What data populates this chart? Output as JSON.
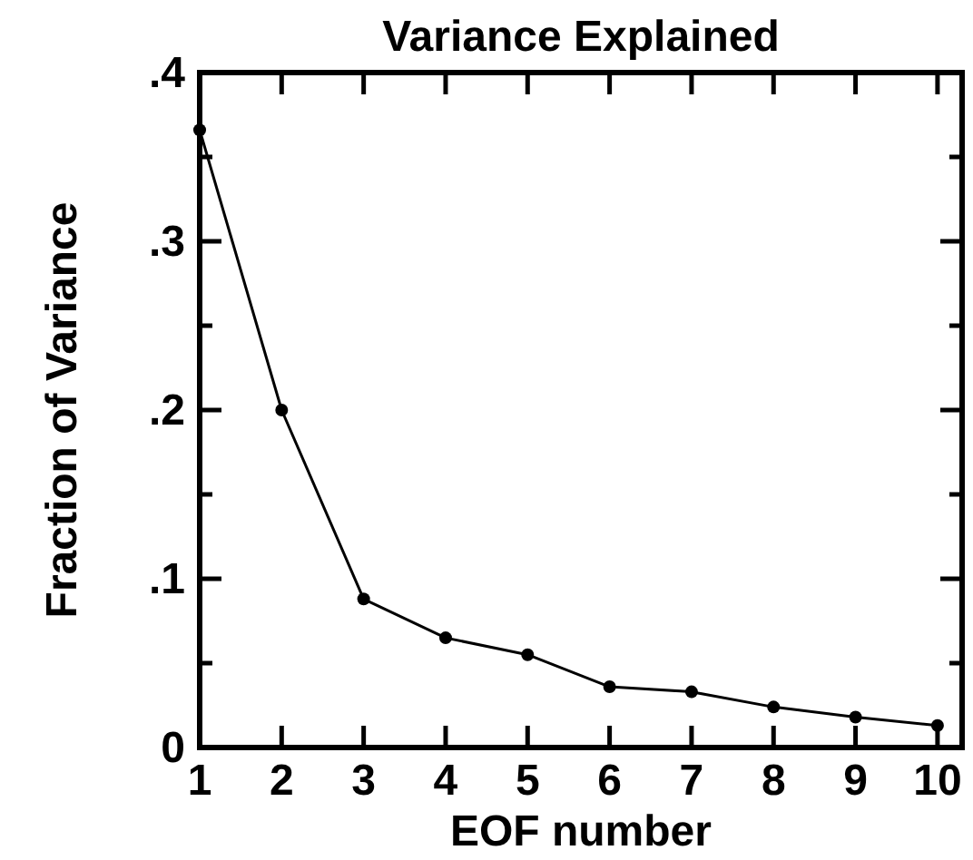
{
  "chart_data": {
    "type": "line",
    "title": "Variance Explained",
    "xlabel": "EOF number",
    "ylabel": "Fraction of Variance",
    "x": [
      1,
      2,
      3,
      4,
      5,
      6,
      7,
      8,
      9,
      10
    ],
    "series": [
      {
        "color": "#000000",
        "values": [
          0.366,
          0.2,
          0.088,
          0.065,
          0.055,
          0.036,
          0.033,
          0.024,
          0.018,
          0.013
        ]
      }
    ],
    "xlim": [
      1,
      10.3
    ],
    "xticks": [
      1,
      2,
      3,
      4,
      5,
      6,
      7,
      8,
      9,
      10
    ],
    "ylim": [
      0,
      0.4
    ],
    "yticks": [
      {
        "value": 0,
        "label": "0"
      },
      {
        "value": 0.05,
        "label": null
      },
      {
        "value": 0.1,
        "label": ".1"
      },
      {
        "value": 0.15,
        "label": null
      },
      {
        "value": 0.2,
        "label": ".2"
      },
      {
        "value": 0.25,
        "label": null
      },
      {
        "value": 0.3,
        "label": ".3"
      },
      {
        "value": 0.35,
        "label": null
      },
      {
        "value": 0.4,
        "label": ".4"
      }
    ],
    "grid": false,
    "marker": "circle",
    "line_style": "solid"
  }
}
